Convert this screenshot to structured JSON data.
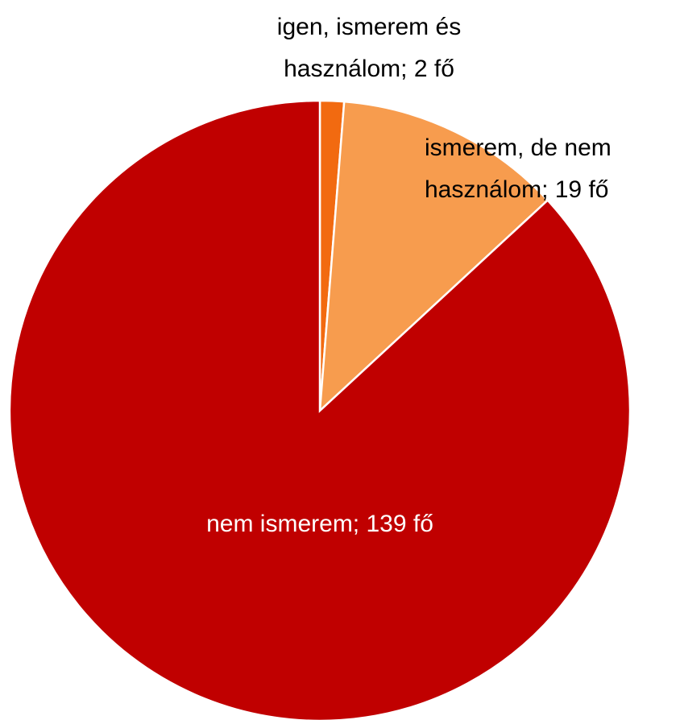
{
  "chart_data": {
    "type": "pie",
    "values": [
      2,
      19,
      139
    ],
    "value_labels": [
      [
        "igen, ismerem és",
        "használom; 2 fő"
      ],
      [
        "ismerem, de nem",
        "használom; 19 fő"
      ],
      [
        "nem ismerem; 139 fő"
      ]
    ],
    "colors": [
      "#f26a10",
      "#f79c4e",
      "#c00000"
    ]
  }
}
